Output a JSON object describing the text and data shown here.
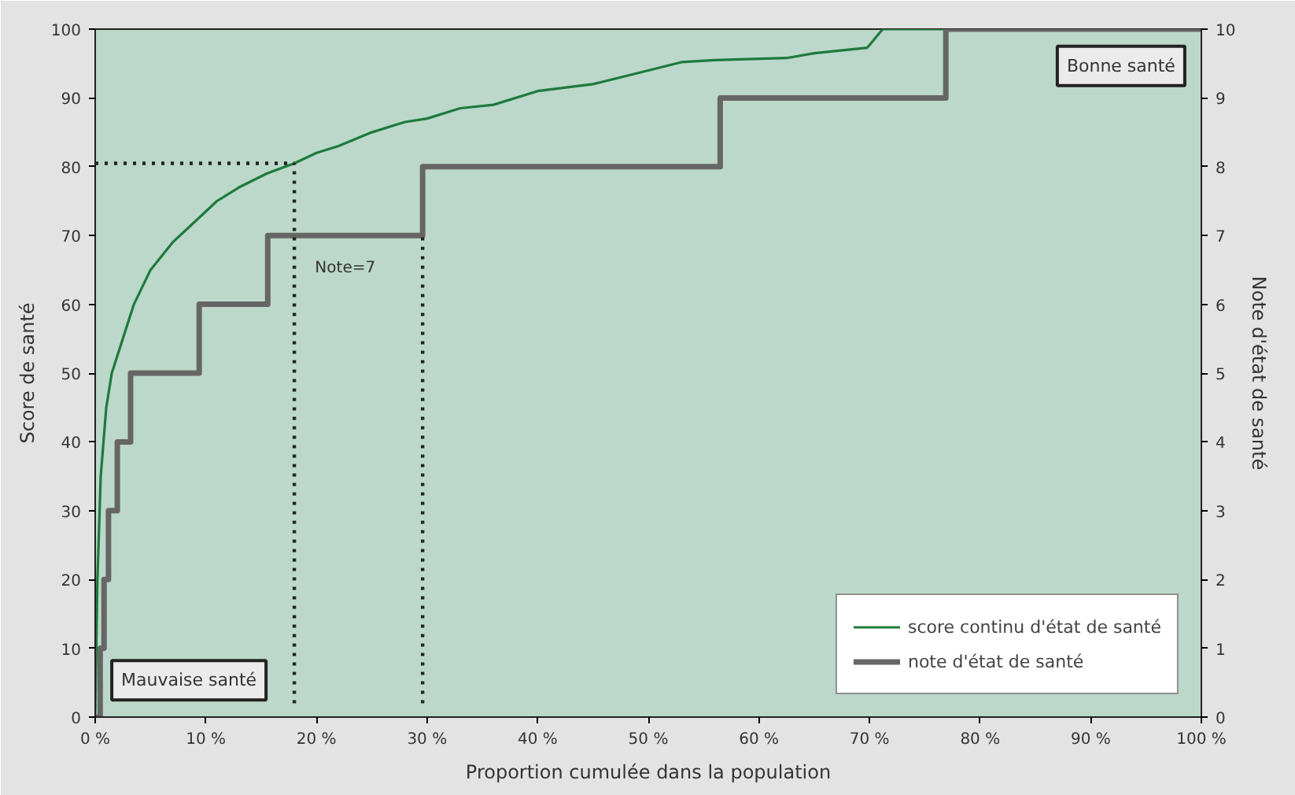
{
  "chart_data": {
    "type": "line",
    "xlabel": "Proportion cumulée dans la population",
    "ylabel": "Score de santé",
    "y2label": "Note d'état de santé",
    "xlim": [
      0,
      100
    ],
    "ylim": [
      0,
      100
    ],
    "y2lim": [
      0,
      10
    ],
    "xticks": [
      {
        "value": 0,
        "label": "0 %"
      },
      {
        "value": 10,
        "label": "10 %"
      },
      {
        "value": 20,
        "label": "20 %"
      },
      {
        "value": 30,
        "label": "30 %"
      },
      {
        "value": 40,
        "label": "40 %"
      },
      {
        "value": 50,
        "label": "50 %"
      },
      {
        "value": 60,
        "label": "60 %"
      },
      {
        "value": 70,
        "label": "70 %"
      },
      {
        "value": 80,
        "label": "80 %"
      },
      {
        "value": 90,
        "label": "90 %"
      },
      {
        "value": 100,
        "label": "100 %"
      }
    ],
    "yticks": [
      0,
      10,
      20,
      30,
      40,
      50,
      60,
      70,
      80,
      90,
      100
    ],
    "y2ticks": [
      0,
      1,
      2,
      3,
      4,
      5,
      6,
      7,
      8,
      9,
      10
    ],
    "grid": false,
    "legend": "bottom right",
    "marker": "none",
    "series": [
      {
        "name": "score continu d'état de santé",
        "color": "#1e7a3c",
        "x": [
          0,
          0.2,
          0.5,
          1.0,
          1.5,
          2.5,
          3.5,
          5,
          7,
          9,
          11,
          13,
          15.5,
          18,
          20,
          22,
          25,
          28,
          30,
          33,
          36,
          40,
          45,
          50,
          53,
          56,
          62.5,
          65,
          69.8,
          71.2,
          100
        ],
        "values": [
          0,
          20,
          35,
          45,
          50,
          55,
          60,
          65,
          69,
          72,
          75,
          77,
          79,
          80.5,
          82,
          83,
          85,
          86.5,
          87,
          88.5,
          89,
          91,
          92,
          94,
          95.2,
          95.5,
          95.8,
          96.5,
          97.3,
          100,
          100
        ]
      },
      {
        "name": "note d'état de santé",
        "color": "#666666",
        "type": "step",
        "axis": "y2",
        "x": [
          0,
          0.45,
          0.8,
          1.2,
          2.0,
          3.2,
          9.4,
          15.6,
          29.6,
          56.5,
          76.9,
          100
        ],
        "values": [
          0,
          1,
          2,
          3,
          4,
          5,
          6,
          7,
          8,
          9,
          10,
          10
        ]
      },
      {
        "color": "#222222",
        "type": "line",
        "line_style": "dotted",
        "x": [
          0,
          18
        ],
        "values": [
          80.5,
          80.5
        ]
      },
      {
        "color": "#222222",
        "type": "line",
        "line_style": "dotted",
        "x": [
          18,
          18
        ],
        "values": [
          2,
          80.5
        ]
      },
      {
        "color": "#222222",
        "type": "line",
        "line_style": "dotted",
        "x": [
          29.6,
          29.6
        ],
        "values": [
          2,
          70
        ]
      }
    ],
    "annotations": [
      "Note=7",
      "Mauvaise santé",
      "Bonne santé"
    ]
  }
}
